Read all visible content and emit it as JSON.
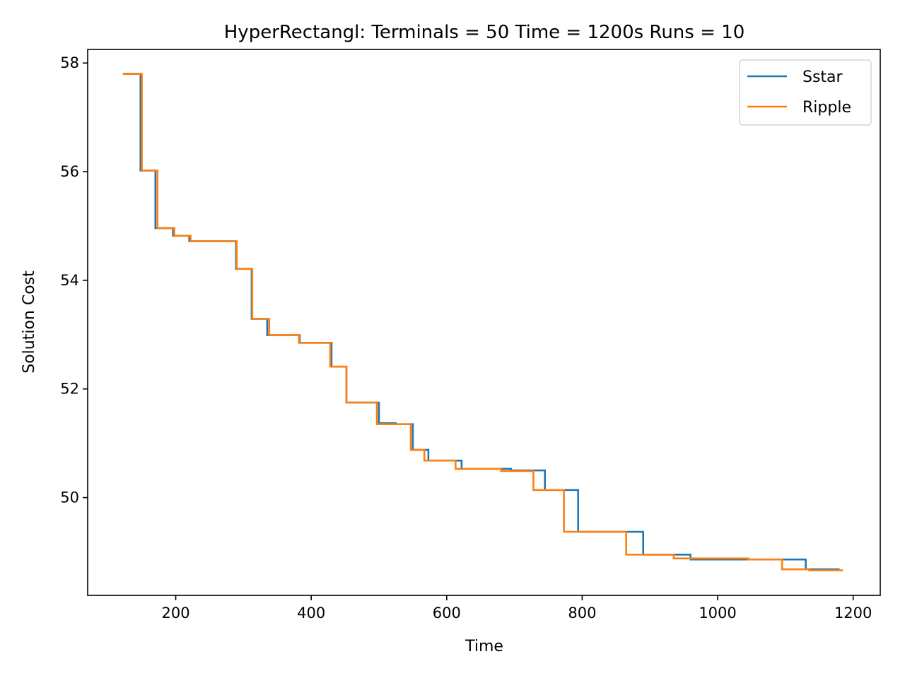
{
  "chart_data": {
    "type": "line",
    "title": "HyperRectangl:  Terminals = 50  Time = 1200s  Runs = 10",
    "xlabel": "Time",
    "ylabel": "Solution Cost",
    "xlim": [
      70,
      1240
    ],
    "ylim": [
      48.2,
      58.25
    ],
    "xticks": [
      200,
      400,
      600,
      800,
      1000,
      1200
    ],
    "yticks": [
      50,
      52,
      54,
      56,
      58
    ],
    "grid": false,
    "legend_position": "top-right",
    "step": "post",
    "series": [
      {
        "name": "Sstar",
        "color": "#1f77b4",
        "x": [
          122,
          148,
          170,
          196,
          220,
          289,
          312,
          335,
          383,
          430,
          452,
          500,
          525,
          550,
          573,
          622,
          695,
          745,
          794,
          890,
          960,
          1050,
          1130,
          1180
        ],
        "y": [
          57.8,
          56.02,
          54.96,
          54.82,
          54.72,
          54.21,
          53.29,
          52.99,
          52.85,
          52.41,
          51.75,
          51.37,
          51.35,
          50.88,
          50.68,
          50.53,
          50.5,
          50.14,
          49.37,
          48.95,
          48.86,
          48.86,
          48.68,
          48.68
        ]
      },
      {
        "name": "Ripple",
        "color": "#ff7f0e",
        "x": [
          122,
          150,
          173,
          198,
          222,
          290,
          313,
          338,
          382,
          428,
          452,
          497,
          523,
          547,
          567,
          613,
          680,
          728,
          773,
          865,
          935,
          1045,
          1095,
          1135,
          1185
        ],
        "y": [
          57.8,
          56.02,
          54.96,
          54.82,
          54.72,
          54.21,
          53.29,
          52.99,
          52.85,
          52.41,
          51.75,
          51.35,
          51.35,
          50.88,
          50.68,
          50.53,
          50.49,
          50.14,
          49.37,
          48.95,
          48.88,
          48.86,
          48.68,
          48.66,
          48.66
        ]
      }
    ]
  }
}
